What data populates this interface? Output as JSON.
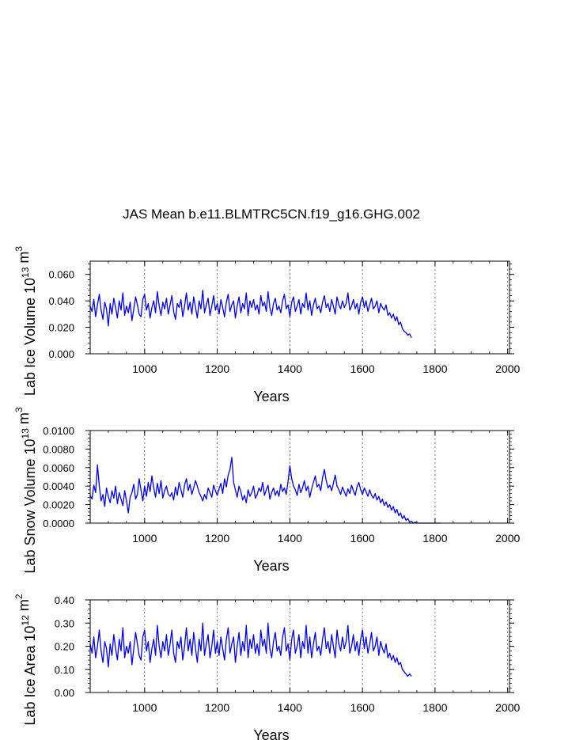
{
  "title": "JAS Mean b.e11.BLMTRC5CN.f19_g16.GHG.002",
  "line_color": "#0000ff",
  "chart_data": [
    {
      "type": "line",
      "xlabel": "Years",
      "ylabel": "Lab Ice Volume 10",
      "ylabel_exp": "13",
      "ylabel_unit": "m",
      "ylabel_unit_exp": "3",
      "xlim": [
        850,
        2005
      ],
      "ylim": [
        0,
        0.07
      ],
      "x_ticks": [
        1000,
        1200,
        1400,
        1600,
        1800,
        2000
      ],
      "x_tick_labels": [
        "1000",
        "1200",
        "1400",
        "1600",
        "1800",
        "2000"
      ],
      "y_ticks": [
        0,
        0.02,
        0.04,
        0.06
      ],
      "y_tick_labels": [
        "0.000",
        "0.020",
        "0.040",
        "0.060"
      ],
      "x_start": 850,
      "x_step": 5,
      "series": [
        {
          "name": "Lab Ice Volume",
          "values": [
            0.036,
            0.032,
            0.041,
            0.028,
            0.037,
            0.045,
            0.033,
            0.026,
            0.039,
            0.034,
            0.021,
            0.038,
            0.03,
            0.042,
            0.035,
            0.027,
            0.04,
            0.033,
            0.046,
            0.029,
            0.036,
            0.031,
            0.039,
            0.025,
            0.034,
            0.043,
            0.037,
            0.03,
            0.028,
            0.041,
            0.045,
            0.033,
            0.038,
            0.027,
            0.035,
            0.04,
            0.031,
            0.047,
            0.036,
            0.029,
            0.039,
            0.034,
            0.042,
            0.03,
            0.037,
            0.044,
            0.032,
            0.026,
            0.038,
            0.035,
            0.041,
            0.028,
            0.036,
            0.046,
            0.033,
            0.039,
            0.03,
            0.043,
            0.035,
            0.027,
            0.04,
            0.034,
            0.048,
            0.031,
            0.037,
            0.042,
            0.029,
            0.036,
            0.044,
            0.033,
            0.038,
            0.03,
            0.041,
            0.035,
            0.028,
            0.039,
            0.045,
            0.032,
            0.037,
            0.04,
            0.027,
            0.036,
            0.043,
            0.031,
            0.038,
            0.034,
            0.046,
            0.029,
            0.04,
            0.035,
            0.041,
            0.033,
            0.037,
            0.03,
            0.044,
            0.036,
            0.039,
            0.032,
            0.047,
            0.035,
            0.029,
            0.038,
            0.042,
            0.033,
            0.036,
            0.031,
            0.04,
            0.045,
            0.034,
            0.037,
            0.028,
            0.039,
            0.043,
            0.032,
            0.036,
            0.041,
            0.03,
            0.038,
            0.035,
            0.046,
            0.033,
            0.04,
            0.029,
            0.037,
            0.042,
            0.034,
            0.036,
            0.031,
            0.039,
            0.044,
            0.035,
            0.038,
            0.032,
            0.041,
            0.036,
            0.03,
            0.043,
            0.037,
            0.034,
            0.04,
            0.035,
            0.038,
            0.046,
            0.033,
            0.036,
            0.041,
            0.034,
            0.038,
            0.03,
            0.039,
            0.043,
            0.035,
            0.04,
            0.032,
            0.037,
            0.042,
            0.034,
            0.036,
            0.04,
            0.031,
            0.038,
            0.035,
            0.033,
            0.037,
            0.029,
            0.031,
            0.027,
            0.03,
            0.025,
            0.028,
            0.022,
            0.024,
            0.019,
            0.017,
            0.016,
            0.014,
            0.015,
            0.012
          ]
        }
      ]
    },
    {
      "type": "line",
      "xlabel": "Years",
      "ylabel": "Lab Snow Volume 10",
      "ylabel_exp": "13",
      "ylabel_unit": "m",
      "ylabel_unit_exp": "3",
      "xlim": [
        850,
        2005
      ],
      "ylim": [
        0,
        0.01
      ],
      "x_ticks": [
        1000,
        1200,
        1400,
        1600,
        1800,
        2000
      ],
      "x_tick_labels": [
        "1000",
        "1200",
        "1400",
        "1600",
        "1800",
        "2000"
      ],
      "y_ticks": [
        0,
        0.002,
        0.004,
        0.006,
        0.008,
        0.01
      ],
      "y_tick_labels": [
        "0.0000",
        "0.0020",
        "0.0040",
        "0.0060",
        "0.0080",
        "0.0100"
      ],
      "x_start": 850,
      "x_step": 5,
      "series": [
        {
          "name": "Lab Snow Volume",
          "values": [
            0.003,
            0.0026,
            0.0041,
            0.0033,
            0.0063,
            0.004,
            0.0024,
            0.0031,
            0.0018,
            0.0038,
            0.0029,
            0.0022,
            0.0035,
            0.0027,
            0.004,
            0.0021,
            0.0033,
            0.0026,
            0.0019,
            0.0035,
            0.0024,
            0.0011,
            0.0028,
            0.0033,
            0.0042,
            0.0026,
            0.0031,
            0.0048,
            0.0036,
            0.0024,
            0.004,
            0.0029,
            0.0044,
            0.0034,
            0.0051,
            0.0038,
            0.0028,
            0.0043,
            0.0032,
            0.0046,
            0.0027,
            0.0035,
            0.004,
            0.0031,
            0.0029,
            0.0033,
            0.0025,
            0.0039,
            0.003,
            0.0044,
            0.0036,
            0.0028,
            0.0041,
            0.0048,
            0.0035,
            0.0042,
            0.0031,
            0.0038,
            0.0046,
            0.004,
            0.0033,
            0.0029,
            0.0024,
            0.0031,
            0.0026,
            0.0038,
            0.0033,
            0.0028,
            0.0041,
            0.0035,
            0.003,
            0.0037,
            0.0043,
            0.0032,
            0.0048,
            0.0039,
            0.0052,
            0.0058,
            0.0071,
            0.0044,
            0.0036,
            0.0028,
            0.004,
            0.0034,
            0.0025,
            0.003,
            0.0022,
            0.0036,
            0.0029,
            0.0033,
            0.004,
            0.0027,
            0.0031,
            0.0038,
            0.0034,
            0.0044,
            0.003,
            0.0036,
            0.0041,
            0.0026,
            0.0033,
            0.0038,
            0.003,
            0.0035,
            0.0029,
            0.0042,
            0.0034,
            0.0038,
            0.0031,
            0.0045,
            0.0062,
            0.0048,
            0.004,
            0.0036,
            0.003,
            0.0042,
            0.0033,
            0.0038,
            0.0046,
            0.0035,
            0.004,
            0.0028,
            0.0037,
            0.0044,
            0.0051,
            0.0039,
            0.0042,
            0.0035,
            0.0049,
            0.0058,
            0.0046,
            0.0038,
            0.0041,
            0.0035,
            0.0043,
            0.0052,
            0.004,
            0.0036,
            0.0031,
            0.0039,
            0.0034,
            0.0029,
            0.0037,
            0.0032,
            0.0041,
            0.0035,
            0.003,
            0.0039,
            0.0044,
            0.0036,
            0.0031,
            0.0038,
            0.0034,
            0.0029,
            0.0036,
            0.003,
            0.0027,
            0.0032,
            0.0025,
            0.0029,
            0.0022,
            0.0026,
            0.0019,
            0.0023,
            0.0017,
            0.002,
            0.0014,
            0.0018,
            0.0011,
            0.0015,
            0.0008,
            0.0011,
            0.0005,
            0.0008,
            0.0003,
            0.0005,
            0.0001,
            0.0002,
            0.0,
            0.0001,
            0.0,
            0.0,
            0.0,
            0.0,
            0.0,
            0.0,
            0.0,
            0.0,
            0.0,
            0.0,
            0.0,
            0.0,
            0.0,
            0.0
          ]
        }
      ]
    },
    {
      "type": "line",
      "xlabel": "Years",
      "ylabel": "Lab Ice Area 10",
      "ylabel_exp": "12",
      "ylabel_unit": "m",
      "ylabel_unit_exp": "2",
      "xlim": [
        850,
        2005
      ],
      "ylim": [
        0,
        0.4
      ],
      "x_ticks": [
        1000,
        1200,
        1400,
        1600,
        1800,
        2000
      ],
      "x_tick_labels": [
        "1000",
        "1200",
        "1400",
        "1600",
        "1800",
        "2000"
      ],
      "y_ticks": [
        0,
        0.1,
        0.2,
        0.3,
        0.4
      ],
      "y_tick_labels": [
        "0.00",
        "0.10",
        "0.20",
        "0.30",
        "0.40"
      ],
      "x_start": 850,
      "x_step": 5,
      "series": [
        {
          "name": "Lab Ice Area",
          "values": [
            0.21,
            0.17,
            0.24,
            0.15,
            0.2,
            0.27,
            0.18,
            0.13,
            0.22,
            0.19,
            0.11,
            0.21,
            0.16,
            0.25,
            0.19,
            0.14,
            0.23,
            0.18,
            0.28,
            0.15,
            0.2,
            0.17,
            0.22,
            0.12,
            0.19,
            0.26,
            0.21,
            0.16,
            0.14,
            0.24,
            0.27,
            0.18,
            0.22,
            0.13,
            0.19,
            0.23,
            0.16,
            0.29,
            0.2,
            0.15,
            0.22,
            0.18,
            0.25,
            0.16,
            0.21,
            0.27,
            0.17,
            0.13,
            0.22,
            0.19,
            0.24,
            0.14,
            0.2,
            0.28,
            0.18,
            0.23,
            0.16,
            0.26,
            0.19,
            0.13,
            0.23,
            0.18,
            0.3,
            0.16,
            0.21,
            0.25,
            0.15,
            0.2,
            0.27,
            0.17,
            0.22,
            0.16,
            0.24,
            0.19,
            0.14,
            0.23,
            0.28,
            0.17,
            0.21,
            0.24,
            0.13,
            0.2,
            0.26,
            0.16,
            0.22,
            0.18,
            0.29,
            0.15,
            0.23,
            0.19,
            0.25,
            0.17,
            0.21,
            0.16,
            0.27,
            0.2,
            0.23,
            0.17,
            0.3,
            0.19,
            0.15,
            0.22,
            0.26,
            0.18,
            0.2,
            0.16,
            0.24,
            0.28,
            0.18,
            0.21,
            0.14,
            0.23,
            0.27,
            0.17,
            0.2,
            0.25,
            0.15,
            0.22,
            0.19,
            0.29,
            0.17,
            0.24,
            0.15,
            0.21,
            0.26,
            0.18,
            0.2,
            0.16,
            0.23,
            0.28,
            0.19,
            0.22,
            0.17,
            0.25,
            0.2,
            0.15,
            0.27,
            0.21,
            0.18,
            0.24,
            0.19,
            0.22,
            0.29,
            0.17,
            0.2,
            0.25,
            0.18,
            0.22,
            0.16,
            0.23,
            0.27,
            0.19,
            0.24,
            0.17,
            0.21,
            0.26,
            0.18,
            0.2,
            0.24,
            0.16,
            0.22,
            0.19,
            0.17,
            0.21,
            0.15,
            0.17,
            0.14,
            0.16,
            0.13,
            0.15,
            0.12,
            0.13,
            0.1,
            0.09,
            0.08,
            0.07,
            0.08,
            0.07
          ]
        }
      ]
    }
  ]
}
